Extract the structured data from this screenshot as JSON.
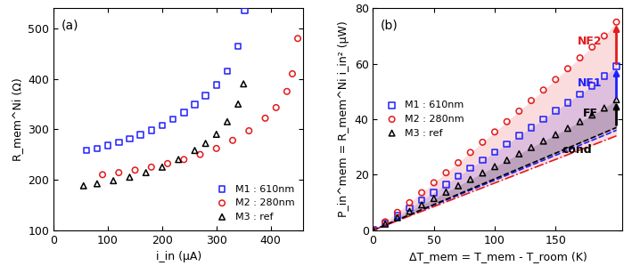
{
  "chart_data": [
    {
      "type": "scatter",
      "panel_label": "(a)",
      "x_label": "i_in (μA)",
      "y_label": "R_mem^Ni (Ω)",
      "xlim": [
        0,
        460
      ],
      "xticks": [
        0,
        100,
        200,
        300,
        400
      ],
      "ylim": [
        100,
        540
      ],
      "yticks": [
        100,
        200,
        300,
        400,
        500
      ],
      "legend": "lower right",
      "series": [
        {
          "name": "M1 : 610nm",
          "color": "#1f1fff",
          "marker": "square",
          "x": [
            60,
            80,
            100,
            120,
            140,
            160,
            180,
            200,
            220,
            240,
            260,
            280,
            300,
            320,
            340,
            352
          ],
          "values": [
            258,
            262,
            268,
            274,
            281,
            289,
            298,
            308,
            320,
            333,
            349,
            367,
            388,
            415,
            465,
            535
          ]
        },
        {
          "name": "M2 : 280nm",
          "color": "#e41a1c",
          "marker": "circle",
          "x": [
            90,
            120,
            150,
            180,
            210,
            240,
            270,
            300,
            330,
            360,
            390,
            410,
            430,
            440,
            450
          ],
          "values": [
            210,
            214,
            219,
            225,
            232,
            240,
            250,
            262,
            278,
            297,
            322,
            343,
            375,
            410,
            480
          ]
        },
        {
          "name": "M3 : ref",
          "color": "#000000",
          "marker": "triangle",
          "x": [
            55,
            80,
            110,
            140,
            170,
            200,
            230,
            260,
            280,
            300,
            320,
            340,
            350
          ],
          "values": [
            188,
            192,
            198,
            205,
            214,
            225,
            240,
            258,
            272,
            290,
            315,
            350,
            390
          ]
        }
      ]
    },
    {
      "type": "scatter",
      "panel_label": "(b)",
      "x_label": "ΔT_mem = T_mem - T_room (K)",
      "y_label": "P_in^mem = R_mem^Ni i_in² (μW)",
      "xlim": [
        0,
        205
      ],
      "xticks": [
        0,
        50,
        100,
        150
      ],
      "ylim": [
        0,
        80
      ],
      "yticks": [
        0,
        20,
        40,
        60,
        80
      ],
      "legend": "center left",
      "series": [
        {
          "name": "M1 : 610nm",
          "color": "#1f1fff",
          "marker": "square",
          "x": [
            0,
            10,
            20,
            30,
            40,
            50,
            60,
            70,
            80,
            90,
            100,
            110,
            120,
            130,
            140,
            150,
            160,
            170,
            180,
            190,
            200
          ],
          "values": [
            0,
            2.5,
            5.2,
            8,
            10.8,
            13.6,
            16.5,
            19.4,
            22.3,
            25.2,
            28.1,
            31,
            34,
            37,
            40,
            43,
            46,
            49,
            52,
            55.5,
            59
          ],
          "cond": {
            "x": [
              0,
              200
            ],
            "values": [
              0,
              36
            ],
            "line_style": "dashed"
          }
        },
        {
          "name": "M2 : 280nm",
          "color": "#e41a1c",
          "marker": "circle",
          "x": [
            0,
            10,
            20,
            30,
            40,
            50,
            60,
            70,
            80,
            90,
            100,
            110,
            120,
            130,
            140,
            150,
            160,
            170,
            180,
            190,
            200
          ],
          "values": [
            0,
            3,
            6.4,
            9.9,
            13.5,
            17.1,
            20.7,
            24.3,
            28,
            31.7,
            35.4,
            39.1,
            42.9,
            46.7,
            50.5,
            54.3,
            58.2,
            62.1,
            66,
            70,
            75
          ],
          "cond": {
            "x": [
              0,
              200
            ],
            "values": [
              0,
              34
            ],
            "line_style": "dashdot"
          }
        },
        {
          "name": "M3 : ref",
          "color": "#000000",
          "marker": "triangle",
          "x": [
            0,
            10,
            20,
            30,
            40,
            50,
            60,
            70,
            80,
            90,
            100,
            110,
            120,
            130,
            140,
            150,
            160,
            170,
            180,
            190,
            200
          ],
          "values": [
            0,
            2.2,
            4.5,
            6.8,
            9.1,
            11.4,
            13.7,
            16,
            18.3,
            20.6,
            22.9,
            25.2,
            27.5,
            29.8,
            32.1,
            34.4,
            36.7,
            39.1,
            41.5,
            44,
            47
          ],
          "cond": {
            "x": [
              0,
              200
            ],
            "values": [
              0,
              37
            ],
            "line_style": "dashed"
          }
        }
      ],
      "annotations": [
        {
          "text": "FF",
          "x": 185,
          "y": 42
        },
        {
          "text": "NF1",
          "x": 188,
          "y": 53
        },
        {
          "text": "NF2",
          "x": 188,
          "y": 68
        },
        {
          "text": "cond",
          "x": 180,
          "y": 29
        }
      ]
    }
  ]
}
